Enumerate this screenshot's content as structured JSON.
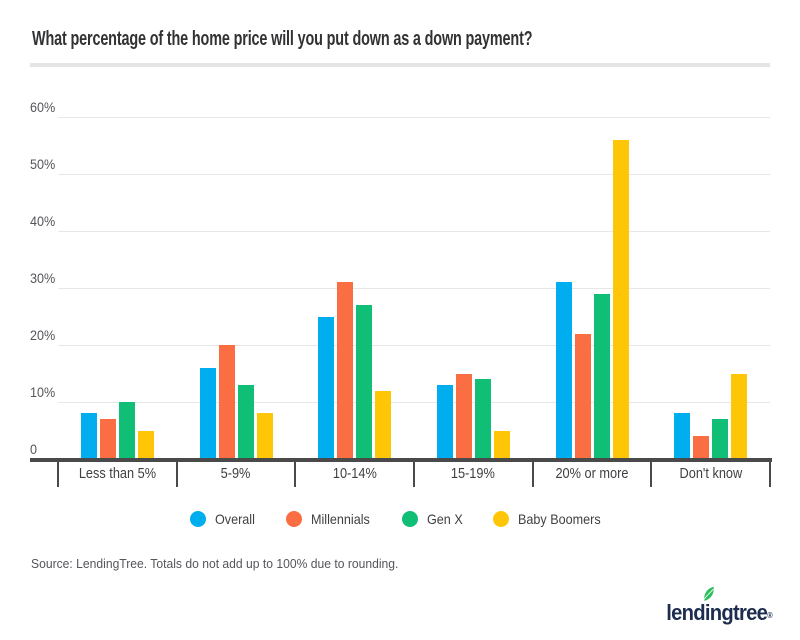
{
  "title": "What percentage of the home price will you put down as a down payment?",
  "source_note": "Source: LendingTree. Totals do not add up to 100% due to rounding.",
  "logo": {
    "text": "lendingtree",
    "registered": "®",
    "navy": "#1d2d50",
    "leaf_green": "#2ebd5f"
  },
  "colors": {
    "axis": "#4a4a4a",
    "gridline": "#e7e7e7",
    "title_divider": "#e4e4e4",
    "title_text": "#313234",
    "tick_label": "#55565a"
  },
  "chart_data": {
    "type": "bar",
    "title": "What percentage of the home price will you put down as a down payment?",
    "categories": [
      "Less than 5%",
      "5-9%",
      "10-14%",
      "15-19%",
      "20% or more",
      "Don't know"
    ],
    "series": [
      {
        "name": "Overall",
        "color": "#00aeef",
        "values": [
          8,
          16,
          25,
          13,
          31,
          8
        ]
      },
      {
        "name": "Millennials",
        "color": "#fb6d42",
        "values": [
          7,
          20,
          31,
          15,
          22,
          4
        ]
      },
      {
        "name": "Gen X",
        "color": "#10be75",
        "values": [
          10,
          13,
          27,
          14,
          29,
          7
        ]
      },
      {
        "name": "Baby Boomers",
        "color": "#ffc608",
        "values": [
          5,
          8,
          12,
          5,
          56,
          15
        ]
      }
    ],
    "xlabel": "",
    "ylabel": "",
    "ylim": [
      0,
      60
    ],
    "y_ticks": [
      {
        "label": "60%",
        "value": 60
      },
      {
        "label": "50%",
        "value": 50
      },
      {
        "label": "40%",
        "value": 40
      },
      {
        "label": "30%",
        "value": 30
      },
      {
        "label": "20%",
        "value": 20
      },
      {
        "label": "10%",
        "value": 10
      },
      {
        "label": "0",
        "value": 0
      }
    ],
    "grid": true,
    "legend_position": "bottom"
  }
}
